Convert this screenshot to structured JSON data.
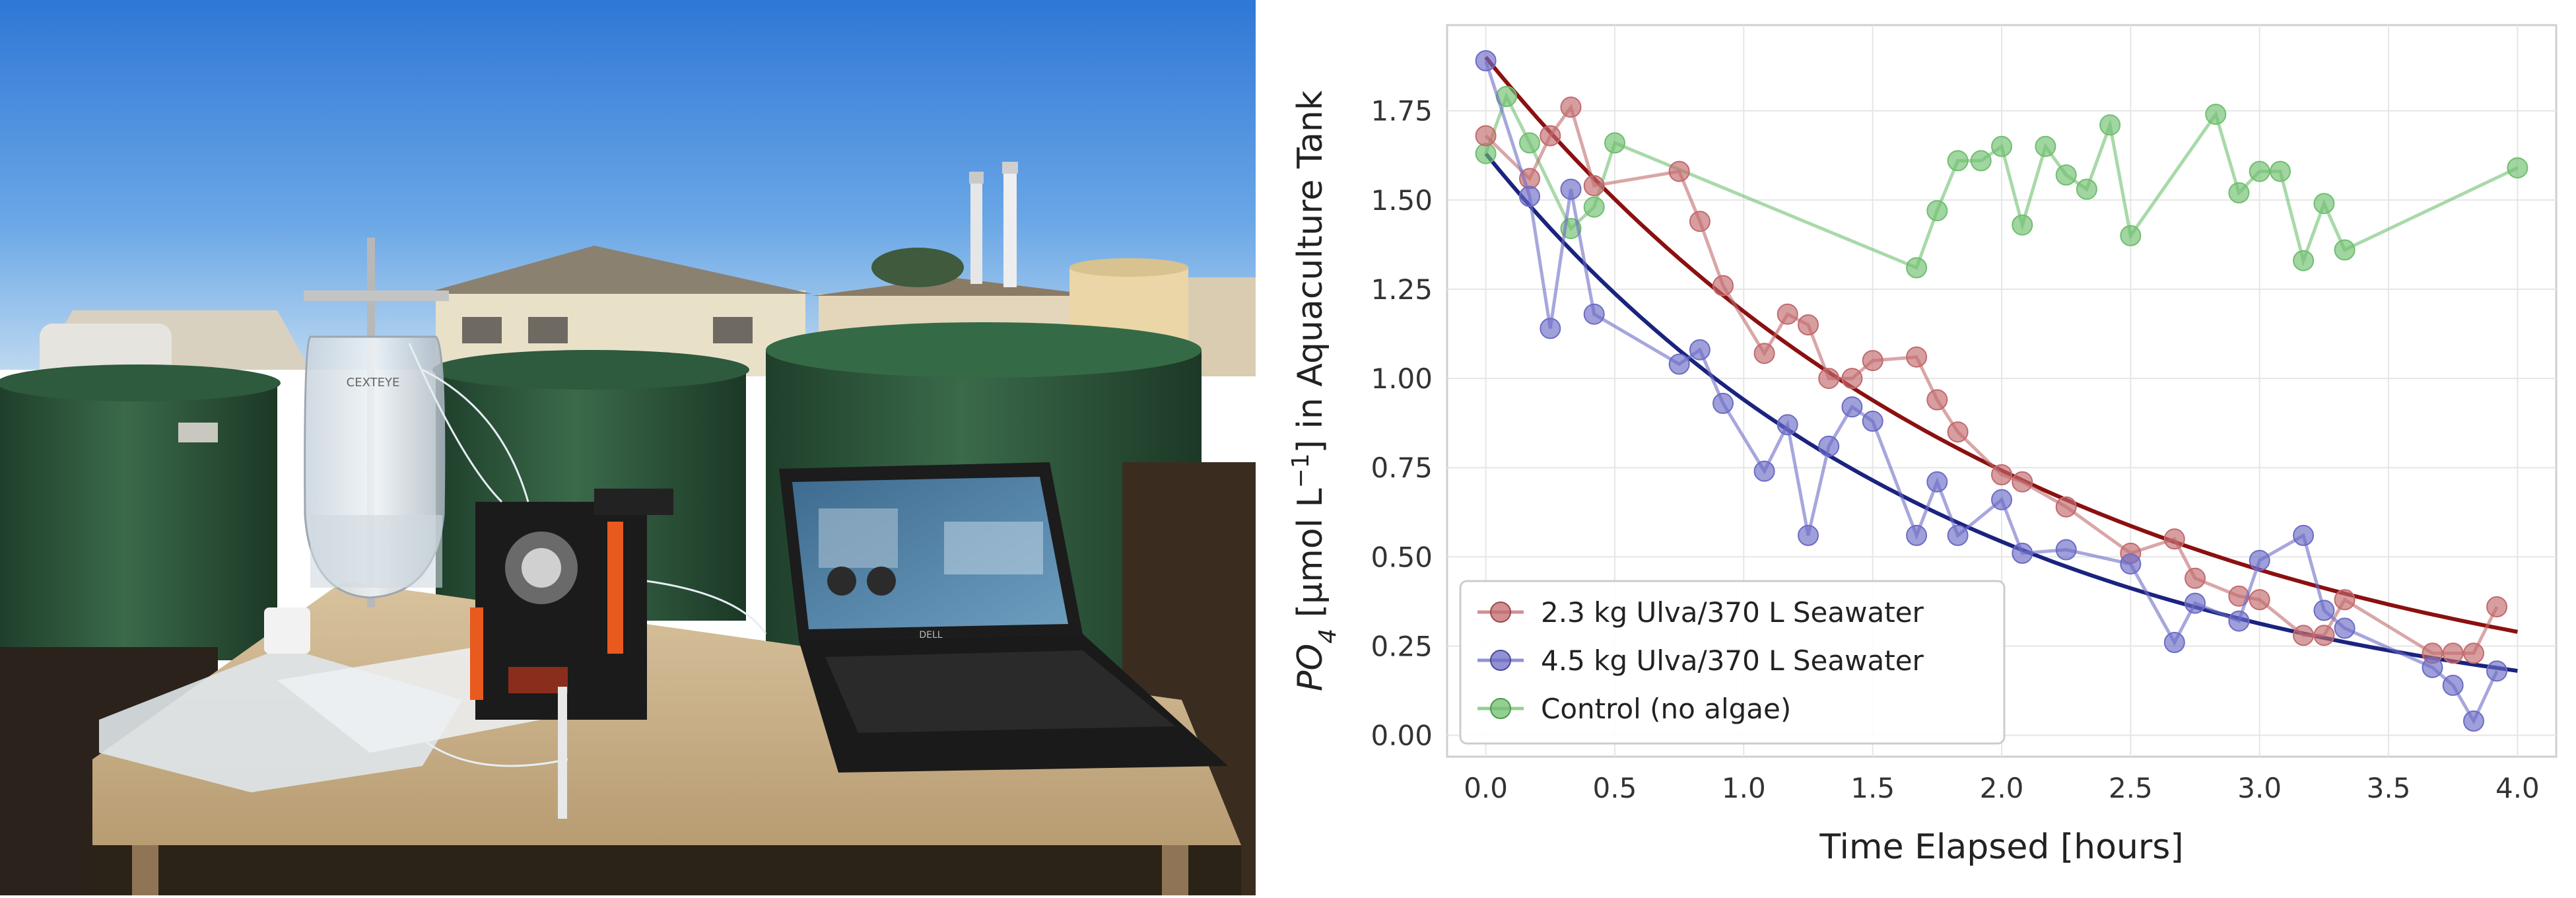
{
  "photo": {
    "bag_label": "CEXTEYE",
    "laptop_brand": "DELL",
    "colors": {
      "sky_top": "#2f77d6",
      "sky_bottom": "#bcd8f0",
      "tank_green": "#2f5a3e",
      "bench_wood": "#c9b28c",
      "building": "#e9e0c8"
    }
  },
  "chart_data": {
    "type": "line",
    "xlabel": "Time Elapsed [hours]",
    "ylabel_parts": {
      "po": "PO",
      "sub": "4",
      "mid": " [μmol L",
      "sup": "−1",
      "end": "] in Aquaculture Tank"
    },
    "xlim": [
      -0.15,
      4.15
    ],
    "ylim": [
      -0.06,
      1.99
    ],
    "xticks": [
      "0.0",
      "0.5",
      "1.0",
      "1.5",
      "2.0",
      "2.5",
      "3.0",
      "3.5",
      "4.0"
    ],
    "yticks": [
      "0.00",
      "0.25",
      "0.50",
      "0.75",
      "1.00",
      "1.25",
      "1.50",
      "1.75"
    ],
    "grid": true,
    "legend_position": "lower-left",
    "series": [
      {
        "name": "2.3 kg Ulva/370 L Seawater",
        "color": "#c26a6d",
        "fit_color": "#8b1010",
        "fit": {
          "y0": 1.9,
          "k": 0.47
        },
        "points": [
          [
            0.0,
            1.68
          ],
          [
            0.17,
            1.56
          ],
          [
            0.25,
            1.68
          ],
          [
            0.33,
            1.76
          ],
          [
            0.42,
            1.54
          ],
          [
            0.75,
            1.58
          ],
          [
            0.83,
            1.44
          ],
          [
            0.92,
            1.26
          ],
          [
            1.08,
            1.07
          ],
          [
            1.17,
            1.18
          ],
          [
            1.25,
            1.15
          ],
          [
            1.33,
            1.0
          ],
          [
            1.42,
            1.0
          ],
          [
            1.5,
            1.05
          ],
          [
            1.67,
            1.06
          ],
          [
            1.75,
            0.94
          ],
          [
            1.83,
            0.85
          ],
          [
            2.0,
            0.73
          ],
          [
            2.08,
            0.71
          ],
          [
            2.25,
            0.64
          ],
          [
            2.5,
            0.51
          ],
          [
            2.67,
            0.55
          ],
          [
            2.75,
            0.44
          ],
          [
            2.92,
            0.39
          ],
          [
            3.0,
            0.38
          ],
          [
            3.17,
            0.28
          ],
          [
            3.25,
            0.28
          ],
          [
            3.33,
            0.38
          ],
          [
            3.67,
            0.23
          ],
          [
            3.75,
            0.23
          ],
          [
            3.83,
            0.23
          ],
          [
            3.92,
            0.36
          ]
        ]
      },
      {
        "name": "4.5 kg Ulva/370 L Seawater",
        "color": "#6c6cc6",
        "fit_color": "#1a237e",
        "fit": {
          "y0": 1.63,
          "k": 0.55
        },
        "points": [
          [
            0.0,
            1.89
          ],
          [
            0.17,
            1.51
          ],
          [
            0.25,
            1.14
          ],
          [
            0.33,
            1.53
          ],
          [
            0.42,
            1.18
          ],
          [
            0.75,
            1.04
          ],
          [
            0.83,
            1.08
          ],
          [
            0.92,
            0.93
          ],
          [
            1.08,
            0.74
          ],
          [
            1.17,
            0.87
          ],
          [
            1.25,
            0.56
          ],
          [
            1.33,
            0.81
          ],
          [
            1.42,
            0.92
          ],
          [
            1.5,
            0.88
          ],
          [
            1.67,
            0.56
          ],
          [
            1.75,
            0.71
          ],
          [
            1.83,
            0.56
          ],
          [
            2.0,
            0.66
          ],
          [
            2.08,
            0.51
          ],
          [
            2.25,
            0.52
          ],
          [
            2.5,
            0.48
          ],
          [
            2.67,
            0.26
          ],
          [
            2.75,
            0.37
          ],
          [
            2.92,
            0.32
          ],
          [
            3.0,
            0.49
          ],
          [
            3.17,
            0.56
          ],
          [
            3.25,
            0.35
          ],
          [
            3.33,
            0.3
          ],
          [
            3.67,
            0.19
          ],
          [
            3.75,
            0.14
          ],
          [
            3.83,
            0.04
          ],
          [
            3.92,
            0.18
          ]
        ]
      },
      {
        "name": "Control (no algae)",
        "color": "#6fbf6f",
        "points": [
          [
            0.0,
            1.63
          ],
          [
            0.08,
            1.79
          ],
          [
            0.17,
            1.66
          ],
          [
            0.33,
            1.42
          ],
          [
            0.42,
            1.48
          ],
          [
            0.5,
            1.66
          ],
          [
            1.67,
            1.31
          ],
          [
            1.75,
            1.47
          ],
          [
            1.83,
            1.61
          ],
          [
            1.92,
            1.61
          ],
          [
            2.0,
            1.65
          ],
          [
            2.08,
            1.43
          ],
          [
            2.17,
            1.65
          ],
          [
            2.25,
            1.57
          ],
          [
            2.33,
            1.53
          ],
          [
            2.42,
            1.71
          ],
          [
            2.5,
            1.4
          ],
          [
            2.83,
            1.74
          ],
          [
            2.92,
            1.52
          ],
          [
            3.0,
            1.58
          ],
          [
            3.08,
            1.58
          ],
          [
            3.17,
            1.33
          ],
          [
            3.25,
            1.49
          ],
          [
            3.33,
            1.36
          ],
          [
            4.0,
            1.59
          ]
        ]
      }
    ]
  }
}
